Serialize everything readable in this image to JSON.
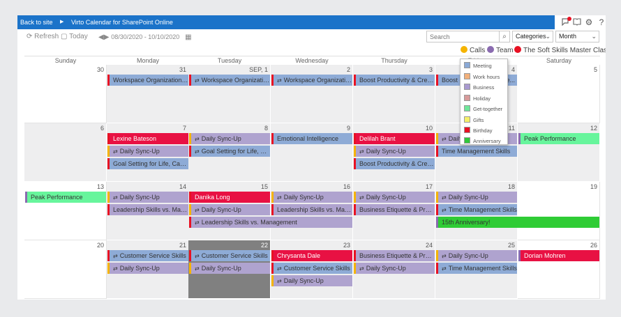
{
  "topbar": {
    "back": "Back to site",
    "app_title": "Virto Calendar for SharePoint Online",
    "icons": [
      "notification-icon",
      "reading-icon",
      "gear-icon",
      "help-icon"
    ]
  },
  "toolbar": {
    "refresh": "Refresh",
    "today": "Today",
    "date_range": "08/30/2020 - 10/10/2020",
    "search_placeholder": "Search",
    "categories": "Categories",
    "view": "Month"
  },
  "legend": [
    {
      "label": "Calls",
      "color": "#f5b400"
    },
    {
      "label": "Team",
      "color": "#8a6bb0"
    },
    {
      "label": "The Soft Skills Master Class",
      "color": "#e81123"
    }
  ],
  "days": [
    "Sunday",
    "Monday",
    "Tuesday",
    "Wednesday",
    "Thursday",
    "Friday",
    "Saturday"
  ],
  "category_menu": [
    {
      "label": "Meeting",
      "color": "#8aa9d6"
    },
    {
      "label": "Work hours",
      "color": "#f2b07a"
    },
    {
      "label": "Business",
      "color": "#a99ad0"
    },
    {
      "label": "Holiday",
      "color": "#d79a9a"
    },
    {
      "label": "Get-together",
      "color": "#6fe69a"
    },
    {
      "label": "Gifts",
      "color": "#f5f06a"
    },
    {
      "label": "Birthday",
      "color": "#e81123"
    },
    {
      "label": "Anniversary",
      "color": "#30c83a"
    }
  ],
  "weeks": [
    {
      "dates": [
        "30",
        "31",
        "SEP, 1",
        "2",
        "3",
        "4",
        "5"
      ]
    },
    {
      "dates": [
        "6",
        "7",
        "8",
        "9",
        "10",
        "11",
        "12"
      ]
    },
    {
      "dates": [
        "13",
        "14",
        "15",
        "16",
        "17",
        "18",
        "19"
      ]
    },
    {
      "dates": [
        "20",
        "21",
        "22",
        "23",
        "24",
        "25",
        "26"
      ]
    }
  ],
  "events": [
    {
      "week": 0,
      "day": 1,
      "slot": 0,
      "span": 1,
      "title": "Workspace Organization f...",
      "style": "meeting",
      "border": "#e81123",
      "icon": false
    },
    {
      "week": 0,
      "day": 2,
      "slot": 0,
      "span": 1,
      "title": "Workspace Organizatio...",
      "style": "meeting",
      "border": "#e81123",
      "icon": true
    },
    {
      "week": 0,
      "day": 3,
      "slot": 0,
      "span": 1,
      "title": "Workspace Organizatio...",
      "style": "meeting",
      "border": "#e81123",
      "icon": true
    },
    {
      "week": 0,
      "day": 4,
      "slot": 0,
      "span": 1,
      "title": "Boost Productivity & Crea...",
      "style": "meeting",
      "border": "#e81123",
      "icon": false
    },
    {
      "week": 0,
      "day": 5,
      "slot": 0,
      "span": 1,
      "title": "Boost Productivity & Cre...",
      "style": "meeting",
      "border": "#e81123",
      "icon": false
    },
    {
      "week": 1,
      "day": 1,
      "slot": 0,
      "span": 1,
      "title": "Lexine Bateson",
      "style": "birthday",
      "border": "#e81123",
      "icon": false
    },
    {
      "week": 1,
      "day": 1,
      "slot": 1,
      "span": 1,
      "title": "Daily Sync-Up",
      "style": "business",
      "border": "#f5b400",
      "icon": true
    },
    {
      "week": 1,
      "day": 1,
      "slot": 2,
      "span": 1,
      "title": "Goal Setting for Life, Care...",
      "style": "meeting",
      "border": "#e81123",
      "icon": false
    },
    {
      "week": 1,
      "day": 2,
      "slot": 0,
      "span": 1,
      "title": "Daily Sync-Up",
      "style": "business",
      "border": "#f5b400",
      "icon": true
    },
    {
      "week": 1,
      "day": 2,
      "slot": 1,
      "span": 1,
      "title": "Goal Setting for Life, C...",
      "style": "meeting",
      "border": "#e81123",
      "icon": true
    },
    {
      "week": 1,
      "day": 3,
      "slot": 0,
      "span": 1,
      "title": "Emotional Intelligence",
      "style": "meeting",
      "border": "#e81123",
      "icon": false
    },
    {
      "week": 1,
      "day": 4,
      "slot": 0,
      "span": 1,
      "title": "Delilah Brant",
      "style": "birthday",
      "border": "#e81123",
      "icon": false
    },
    {
      "week": 1,
      "day": 4,
      "slot": 1,
      "span": 1,
      "title": "Daily Sync-Up",
      "style": "business",
      "border": "#f5b400",
      "icon": true
    },
    {
      "week": 1,
      "day": 4,
      "slot": 2,
      "span": 1,
      "title": "Boost Productivity & Crea...",
      "style": "meeting",
      "border": "#e81123",
      "icon": false
    },
    {
      "week": 1,
      "day": 5,
      "slot": 0,
      "span": 1,
      "title": "Daily Sync-Up",
      "style": "business",
      "border": "#f5b400",
      "icon": true
    },
    {
      "week": 1,
      "day": 5,
      "slot": 1,
      "span": 1,
      "title": "Time Management Skills",
      "style": "meeting",
      "border": "#e81123",
      "icon": false
    },
    {
      "week": 1,
      "day": 6,
      "slot": 0,
      "span": 1,
      "title": "Peak Performance",
      "style": "gettogether",
      "border": "#8a6bb0",
      "icon": false
    },
    {
      "week": 2,
      "day": 0,
      "slot": 0,
      "span": 1,
      "title": "Peak Performance",
      "style": "gettogether",
      "border": "#8a6bb0",
      "icon": false
    },
    {
      "week": 2,
      "day": 1,
      "slot": 0,
      "span": 1,
      "title": "Daily Sync-Up",
      "style": "business",
      "border": "#f5b400",
      "icon": true
    },
    {
      "week": 2,
      "day": 1,
      "slot": 1,
      "span": 1,
      "title": "Leadership Skills vs. Man...",
      "style": "business",
      "border": "#e81123",
      "icon": false
    },
    {
      "week": 2,
      "day": 2,
      "slot": 0,
      "span": 1,
      "title": "Danika Long",
      "style": "birthday",
      "border": "#e81123",
      "icon": false
    },
    {
      "week": 2,
      "day": 2,
      "slot": 1,
      "span": 1,
      "title": "Daily Sync-Up",
      "style": "business",
      "border": "#f5b400",
      "icon": true
    },
    {
      "week": 2,
      "day": 2,
      "slot": 2,
      "span": 2,
      "title": "Leadership Skills vs. Management",
      "style": "business",
      "border": "#e81123",
      "icon": true
    },
    {
      "week": 2,
      "day": 3,
      "slot": 0,
      "span": 1,
      "title": "Daily Sync-Up",
      "style": "business",
      "border": "#f5b400",
      "icon": true
    },
    {
      "week": 2,
      "day": 3,
      "slot": 1,
      "span": 1,
      "title": "Leadership Skills vs. Man...",
      "style": "business",
      "border": "#e81123",
      "icon": false
    },
    {
      "week": 2,
      "day": 4,
      "slot": 0,
      "span": 1,
      "title": "Daily Sync-Up",
      "style": "business",
      "border": "#f5b400",
      "icon": true
    },
    {
      "week": 2,
      "day": 4,
      "slot": 1,
      "span": 1,
      "title": "Business Etiquette & Prof...",
      "style": "business",
      "border": "#e81123",
      "icon": false
    },
    {
      "week": 2,
      "day": 5,
      "slot": 0,
      "span": 1,
      "title": "Daily Sync-Up",
      "style": "business",
      "border": "#f5b400",
      "icon": true
    },
    {
      "week": 2,
      "day": 5,
      "slot": 1,
      "span": 1,
      "title": "Time Management Skills",
      "style": "meeting",
      "border": "#e81123",
      "icon": true
    },
    {
      "week": 2,
      "day": 5,
      "slot": 2,
      "span": 2,
      "title": "15th Anniversary!",
      "style": "anniversary",
      "border": "#8a6bb0",
      "icon": false
    },
    {
      "week": 3,
      "day": 1,
      "slot": 0,
      "span": 1,
      "title": "Customer Service Skills",
      "style": "meeting",
      "border": "#e81123",
      "icon": true
    },
    {
      "week": 3,
      "day": 1,
      "slot": 1,
      "span": 1,
      "title": "Daily Sync-Up",
      "style": "business",
      "border": "#f5b400",
      "icon": true
    },
    {
      "week": 3,
      "day": 2,
      "slot": 0,
      "span": 1,
      "title": "Customer Service Skills",
      "style": "meeting",
      "border": "#e81123",
      "icon": true
    },
    {
      "week": 3,
      "day": 2,
      "slot": 1,
      "span": 1,
      "title": "Daily Sync-Up",
      "style": "business",
      "border": "#f5b400",
      "icon": true
    },
    {
      "week": 3,
      "day": 3,
      "slot": 0,
      "span": 1,
      "title": "Chrysanta Dale",
      "style": "birthday",
      "border": "#e81123",
      "icon": false
    },
    {
      "week": 3,
      "day": 3,
      "slot": 1,
      "span": 1,
      "title": "Customer Service Skills",
      "style": "meeting",
      "border": "#e81123",
      "icon": true
    },
    {
      "week": 3,
      "day": 3,
      "slot": 2,
      "span": 1,
      "title": "Daily Sync-Up",
      "style": "business",
      "border": "#f5b400",
      "icon": true
    },
    {
      "week": 3,
      "day": 4,
      "slot": 0,
      "span": 1,
      "title": "Business Etiquette & Prof...",
      "style": "business",
      "border": "#e81123",
      "icon": false
    },
    {
      "week": 3,
      "day": 4,
      "slot": 1,
      "span": 1,
      "title": "Daily Sync-Up",
      "style": "business",
      "border": "#f5b400",
      "icon": true
    },
    {
      "week": 3,
      "day": 5,
      "slot": 0,
      "span": 1,
      "title": "Daily Sync-Up",
      "style": "business",
      "border": "#f5b400",
      "icon": true
    },
    {
      "week": 3,
      "day": 5,
      "slot": 1,
      "span": 1,
      "title": "Time Management Skills",
      "style": "meeting",
      "border": "#e81123",
      "icon": true
    },
    {
      "week": 3,
      "day": 6,
      "slot": 0,
      "span": 1,
      "title": "Dorian Mohren",
      "style": "birthday",
      "border": "#8a6bb0",
      "icon": false
    }
  ],
  "colors": {
    "meeting": "#8eabd6",
    "business": "#afa3cf",
    "birthday": "#e81143",
    "gettogether": "#67f59c",
    "anniversary": "#2fcc35",
    "topbar": "#1b73c9",
    "today": "#808080"
  }
}
